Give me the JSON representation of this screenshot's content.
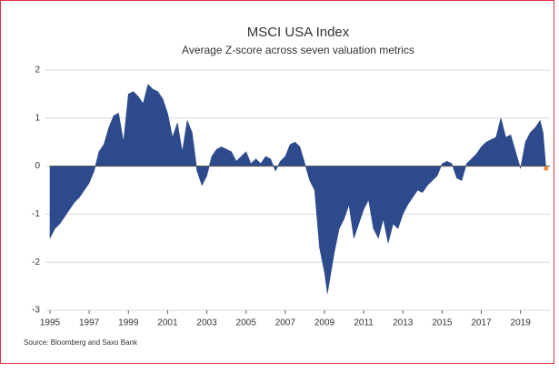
{
  "chart_data": {
    "type": "area",
    "title": "MSCI USA Index",
    "subtitle": "Average Z-score across seven valuation metrics",
    "source": "Source: Bloomberg and Saxo Bank",
    "color": "#2c4a8c",
    "marker_color": "#f28a30",
    "grid": true,
    "xlim": [
      1995,
      2020.5
    ],
    "xticks": [
      1995,
      1997,
      1999,
      2001,
      2003,
      2005,
      2007,
      2009,
      2011,
      2013,
      2015,
      2017,
      2019
    ],
    "ylim": [
      -3,
      2
    ],
    "yticks": [
      -3,
      -2,
      -1,
      0,
      1,
      2
    ],
    "x": [
      1995.0,
      1995.25,
      1995.5,
      1995.75,
      1996.0,
      1996.25,
      1996.5,
      1996.75,
      1997.0,
      1997.25,
      1997.5,
      1997.75,
      1998.0,
      1998.25,
      1998.5,
      1998.75,
      1999.0,
      1999.25,
      1999.5,
      1999.75,
      2000.0,
      2000.25,
      2000.5,
      2000.75,
      2001.0,
      2001.25,
      2001.5,
      2001.75,
      2002.0,
      2002.25,
      2002.5,
      2002.75,
      2003.0,
      2003.25,
      2003.5,
      2003.75,
      2004.0,
      2004.25,
      2004.5,
      2004.75,
      2005.0,
      2005.25,
      2005.5,
      2005.75,
      2006.0,
      2006.25,
      2006.5,
      2006.75,
      2007.0,
      2007.25,
      2007.5,
      2007.75,
      2008.0,
      2008.25,
      2008.5,
      2008.75,
      2009.0,
      2009.15,
      2009.5,
      2009.75,
      2010.0,
      2010.25,
      2010.5,
      2010.75,
      2011.0,
      2011.25,
      2011.5,
      2011.75,
      2012.0,
      2012.25,
      2012.5,
      2012.75,
      2013.0,
      2013.25,
      2013.5,
      2013.75,
      2014.0,
      2014.25,
      2014.5,
      2014.75,
      2015.0,
      2015.25,
      2015.5,
      2015.75,
      2016.0,
      2016.25,
      2016.5,
      2016.75,
      2017.0,
      2017.25,
      2017.5,
      2017.75,
      2018.0,
      2018.25,
      2018.5,
      2018.75,
      2019.0,
      2019.25,
      2019.5,
      2019.75,
      2020.0,
      2020.15,
      2020.3
    ],
    "values": [
      -1.5,
      -1.3,
      -1.2,
      -1.05,
      -0.9,
      -0.75,
      -0.65,
      -0.5,
      -0.35,
      -0.1,
      0.3,
      0.45,
      0.8,
      1.05,
      1.1,
      0.5,
      1.5,
      1.55,
      1.45,
      1.3,
      1.7,
      1.6,
      1.55,
      1.4,
      1.1,
      0.6,
      0.9,
      0.3,
      0.95,
      0.7,
      -0.1,
      -0.4,
      -0.2,
      0.2,
      0.35,
      0.4,
      0.35,
      0.3,
      0.1,
      0.2,
      0.3,
      0.05,
      0.15,
      0.05,
      0.2,
      0.15,
      -0.1,
      0.1,
      0.2,
      0.45,
      0.5,
      0.4,
      0.05,
      -0.3,
      -0.5,
      -1.7,
      -2.2,
      -2.65,
      -1.8,
      -1.3,
      -1.1,
      -0.8,
      -1.5,
      -1.2,
      -0.9,
      -0.7,
      -1.3,
      -1.5,
      -1.1,
      -1.6,
      -1.2,
      -1.3,
      -1.0,
      -0.8,
      -0.65,
      -0.5,
      -0.55,
      -0.4,
      -0.3,
      -0.2,
      0.05,
      0.1,
      0.05,
      -0.25,
      -0.3,
      0.05,
      0.15,
      0.25,
      0.4,
      0.5,
      0.55,
      0.6,
      1.0,
      0.6,
      0.65,
      0.3,
      -0.05,
      0.5,
      0.7,
      0.8,
      0.95,
      0.7,
      -0.05
    ]
  }
}
